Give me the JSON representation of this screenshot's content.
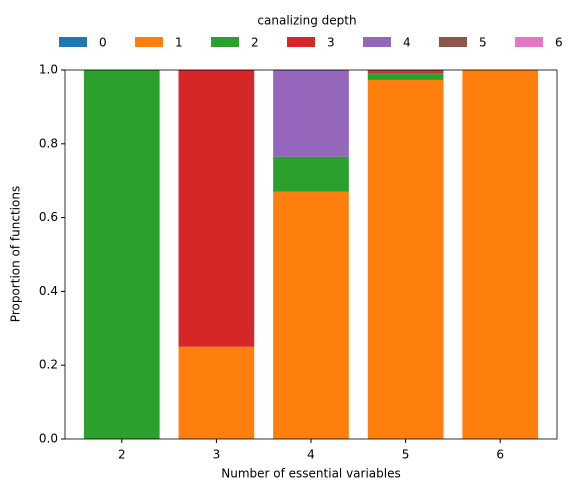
{
  "chart_data": {
    "type": "stacked_bar",
    "legend_title": "canalizing depth",
    "legend_position": "top",
    "x_label": "Number of essential variables",
    "y_label": "Proportion of functions",
    "categories": [
      "2",
      "3",
      "4",
      "5",
      "6"
    ],
    "series": [
      {
        "name": "0",
        "color": "#1f77b4",
        "values": [
          0,
          0,
          0,
          0,
          0
        ]
      },
      {
        "name": "1",
        "color": "#ff7f0e",
        "values": [
          0,
          0.25,
          0.67,
          0.973,
          1.0
        ]
      },
      {
        "name": "2",
        "color": "#2ca02c",
        "values": [
          1.0,
          0,
          0.095,
          0.018,
          0
        ]
      },
      {
        "name": "3",
        "color": "#d62728",
        "values": [
          0,
          0.75,
          0,
          0.005,
          0
        ]
      },
      {
        "name": "4",
        "color": "#9467bd",
        "values": [
          0,
          0,
          0.235,
          0,
          0
        ]
      },
      {
        "name": "5",
        "color": "#8c564b",
        "values": [
          0,
          0,
          0,
          0.004,
          0
        ]
      },
      {
        "name": "6",
        "color": "#e377c2",
        "values": [
          0,
          0,
          0,
          0,
          0
        ]
      }
    ],
    "ylim": [
      0,
      1
    ],
    "yticks": [
      {
        "value": 0,
        "label": "0.0"
      },
      {
        "value": 0.2,
        "label": "0.2"
      },
      {
        "value": 0.4,
        "label": "0.4"
      },
      {
        "value": 0.6,
        "label": "0.6"
      },
      {
        "value": 0.8,
        "label": "0.8"
      },
      {
        "value": 1,
        "label": "1.0"
      }
    ],
    "grid": false
  }
}
